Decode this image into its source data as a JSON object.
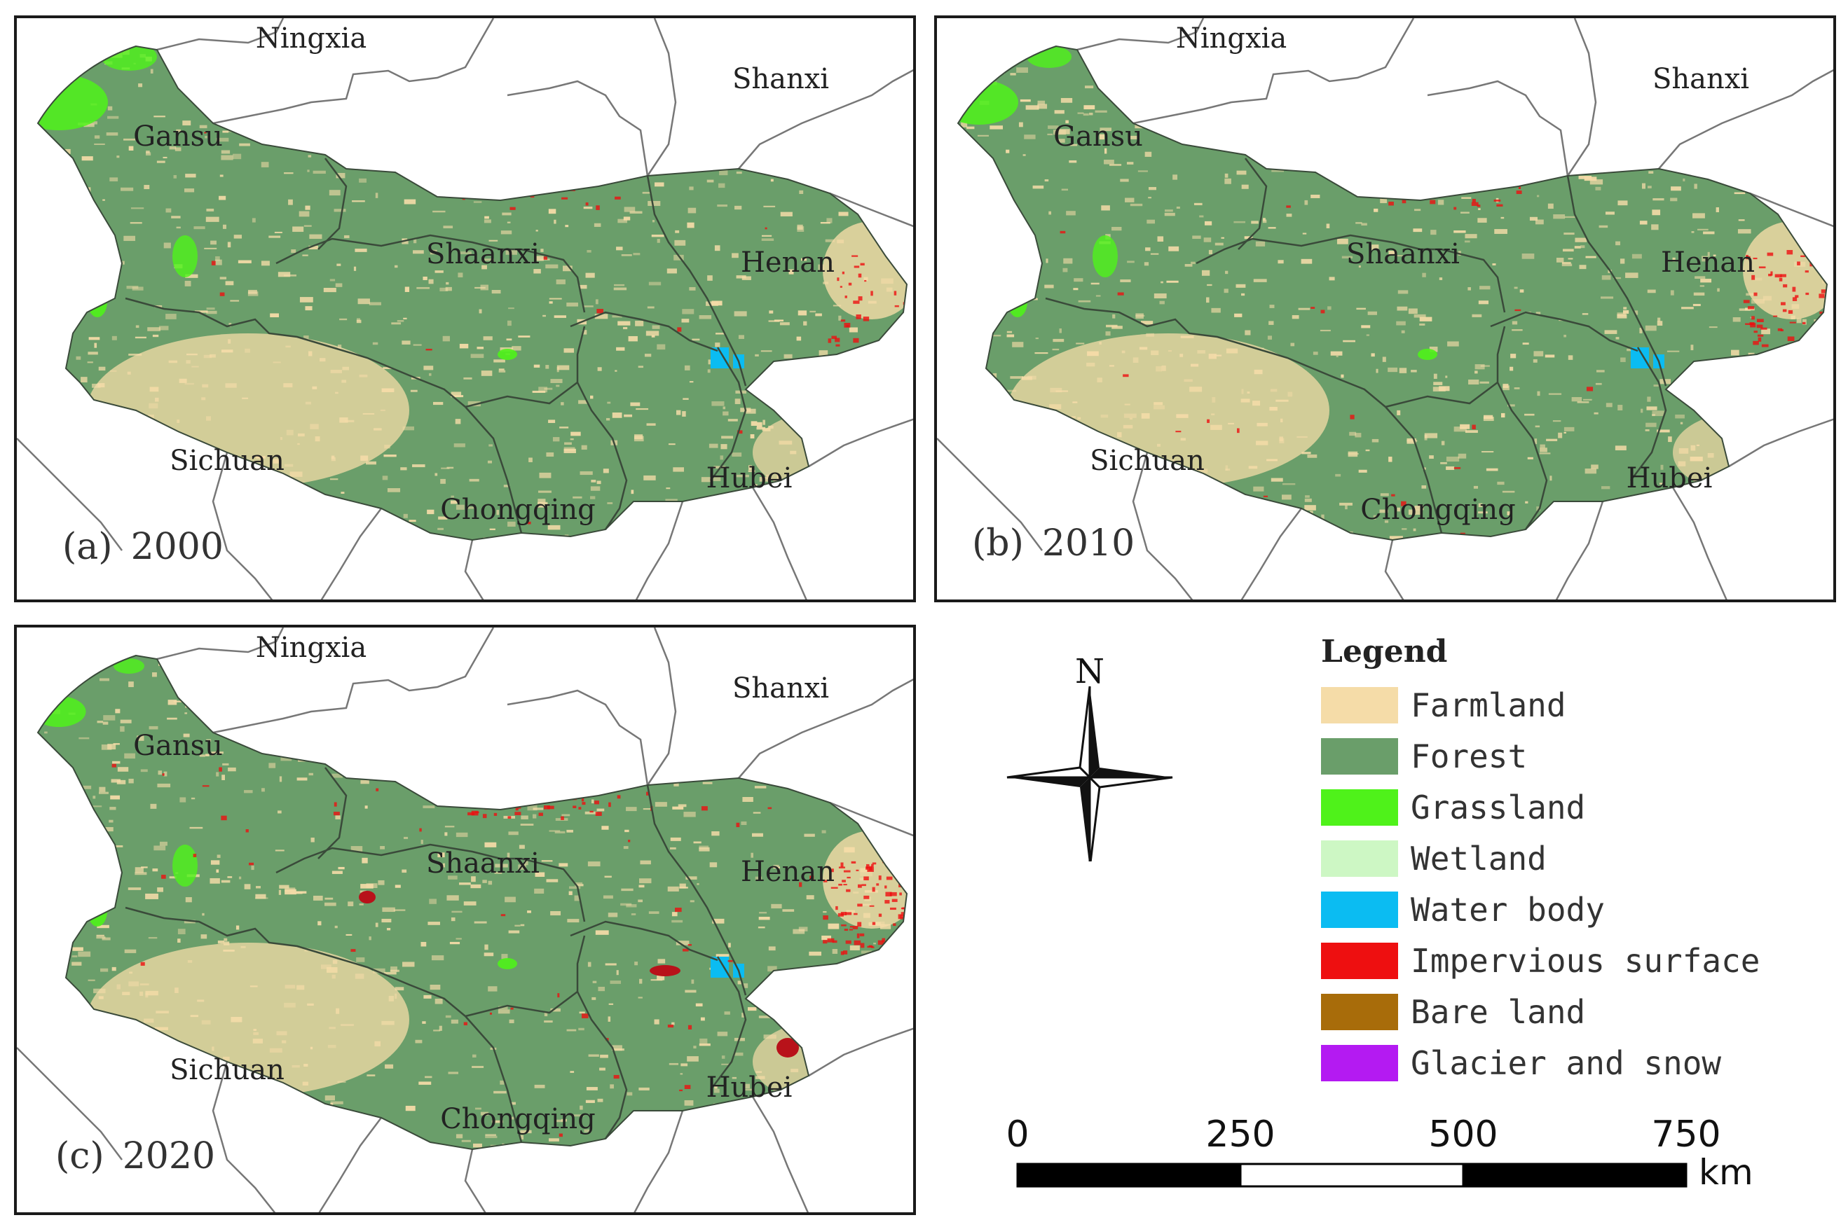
{
  "panels": [
    {
      "label": "(a)",
      "year": "2000"
    },
    {
      "label": "(b)",
      "year": "2010"
    },
    {
      "label": "(c)",
      "year": "2020"
    }
  ],
  "provinces": [
    "Ningxia",
    "Shanxi",
    "Gansu",
    "Shaanxi",
    "Henan",
    "Sichuan",
    "Chongqing",
    "Hubei"
  ],
  "compass": {
    "north": "N"
  },
  "legend": {
    "title": "Legend",
    "items": [
      {
        "label": "Farmland",
        "color": "#f5dca8"
      },
      {
        "label": "Forest",
        "color": "#6a9e6a"
      },
      {
        "label": "Grassland",
        "color": "#4ff21a"
      },
      {
        "label": "Wetland",
        "color": "#cdf7c4"
      },
      {
        "label": "Water body",
        "color": "#0bbcf2"
      },
      {
        "label": "Impervious surface",
        "color": "#ee0f10"
      },
      {
        "label": "Bare land",
        "color": "#a86c0a"
      },
      {
        "label": "Glacier and snow",
        "color": "#b41af2"
      }
    ]
  },
  "scale": {
    "ticks": [
      "0",
      "250",
      "500",
      "750"
    ],
    "unit": "km"
  }
}
